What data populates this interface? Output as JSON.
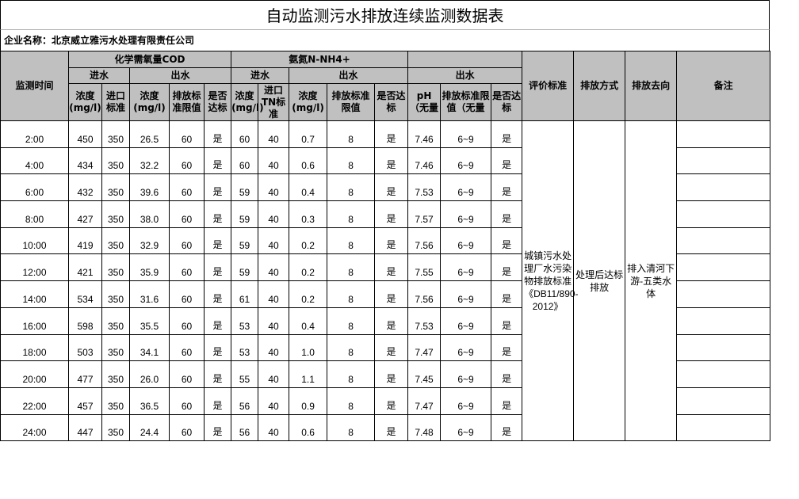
{
  "title": "自动监测污水排放连续监测数据表",
  "company": "企业名称：北京威立雅污水处理有限责任公司",
  "header": {
    "time": "监测时间",
    "cod": "化学需氧量COD",
    "nh": "氨氮N-NH4+",
    "in": "进水",
    "out": "出水",
    "conc": "浓度(mg/l)",
    "in_std": "进口标准",
    "limit": "排放标准限值",
    "ok": "是否达标",
    "nh_in_std": "进口TN标准",
    "nh_limit": "排放标准限值",
    "ph": "pH（无量",
    "ph_limit": "排放标准限值（无量",
    "eval": "评价标准",
    "mode": "排放方式",
    "dest": "排放去向",
    "remark": "备注"
  },
  "rows": [
    [
      "2:00",
      "450",
      "350",
      "26.5",
      "60",
      "是",
      "60",
      "40",
      "0.7",
      "8",
      "是",
      "7.46",
      "6~9",
      "是"
    ],
    [
      "4:00",
      "434",
      "350",
      "32.2",
      "60",
      "是",
      "60",
      "40",
      "0.6",
      "8",
      "是",
      "7.46",
      "6~9",
      "是"
    ],
    [
      "6:00",
      "432",
      "350",
      "39.6",
      "60",
      "是",
      "59",
      "40",
      "0.4",
      "8",
      "是",
      "7.53",
      "6~9",
      "是"
    ],
    [
      "8:00",
      "427",
      "350",
      "38.0",
      "60",
      "是",
      "59",
      "40",
      "0.3",
      "8",
      "是",
      "7.57",
      "6~9",
      "是"
    ],
    [
      "10:00",
      "419",
      "350",
      "32.9",
      "60",
      "是",
      "59",
      "40",
      "0.2",
      "8",
      "是",
      "7.56",
      "6~9",
      "是"
    ],
    [
      "12:00",
      "421",
      "350",
      "35.9",
      "60",
      "是",
      "59",
      "40",
      "0.2",
      "8",
      "是",
      "7.55",
      "6~9",
      "是"
    ],
    [
      "14:00",
      "534",
      "350",
      "31.6",
      "60",
      "是",
      "61",
      "40",
      "0.2",
      "8",
      "是",
      "7.56",
      "6~9",
      "是"
    ],
    [
      "16:00",
      "598",
      "350",
      "35.5",
      "60",
      "是",
      "53",
      "40",
      "0.4",
      "8",
      "是",
      "7.53",
      "6~9",
      "是"
    ],
    [
      "18:00",
      "503",
      "350",
      "34.1",
      "60",
      "是",
      "53",
      "40",
      "1.0",
      "8",
      "是",
      "7.47",
      "6~9",
      "是"
    ],
    [
      "20:00",
      "477",
      "350",
      "26.0",
      "60",
      "是",
      "55",
      "40",
      "1.1",
      "8",
      "是",
      "7.45",
      "6~9",
      "是"
    ],
    [
      "22:00",
      "457",
      "350",
      "36.5",
      "60",
      "是",
      "56",
      "40",
      "0.9",
      "8",
      "是",
      "7.47",
      "6~9",
      "是"
    ],
    [
      "24:00",
      "447",
      "350",
      "24.4",
      "60",
      "是",
      "56",
      "40",
      "0.6",
      "8",
      "是",
      "7.48",
      "6~9",
      "是"
    ]
  ],
  "eval_value": "城镇污水处理厂水污染物排放标准《DB11/890-2012》",
  "mode_value": "处理后达标排放",
  "dest_value": "排入清河下游-五类水体"
}
